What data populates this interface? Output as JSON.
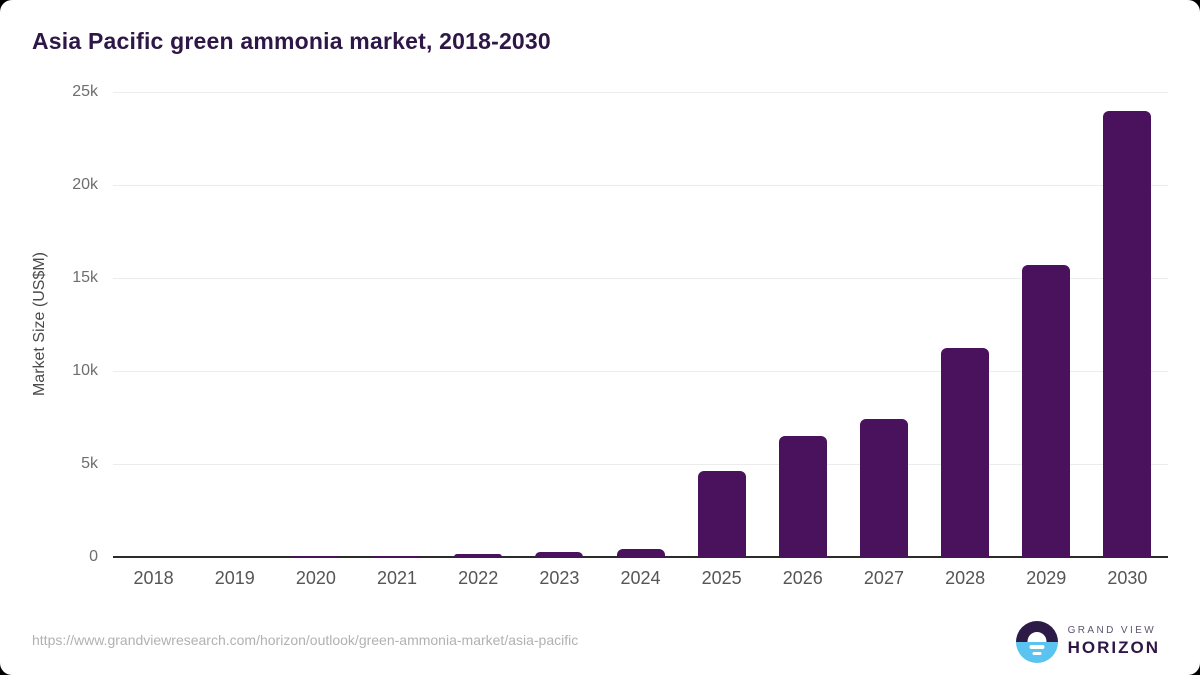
{
  "header": {
    "title": "Asia Pacific green ammonia market, 2018-2030"
  },
  "chart_data": {
    "type": "bar",
    "title": "Asia Pacific green ammonia market, 2018-2030",
    "categories": [
      "2018",
      "2019",
      "2020",
      "2021",
      "2022",
      "2023",
      "2024",
      "2025",
      "2026",
      "2027",
      "2028",
      "2029",
      "2030"
    ],
    "values": [
      10,
      20,
      30,
      50,
      140,
      260,
      440,
      4600,
      6500,
      7400,
      11250,
      15700,
      24000
    ],
    "xlabel": "",
    "ylabel": "Market Size (US$M)",
    "ylim": [
      0,
      25000
    ],
    "y_ticks": [
      {
        "value": 0,
        "label": "0"
      },
      {
        "value": 5000,
        "label": "5k"
      },
      {
        "value": 10000,
        "label": "10k"
      },
      {
        "value": 15000,
        "label": "15k"
      },
      {
        "value": 20000,
        "label": "20k"
      },
      {
        "value": 25000,
        "label": "25k"
      }
    ],
    "grid": true,
    "legend": false,
    "bar_color": "#4a115c"
  },
  "footer": {
    "source_url": "https://www.grandviewresearch.com/horizon/outlook/green-ammonia-market/asia-pacific",
    "logo": {
      "line1": "GRAND VIEW",
      "line2": "HORIZON"
    }
  },
  "colors": {
    "title": "#2e1747",
    "bar": "#4a115c",
    "gridline": "#ececec",
    "axis_line": "#2b2b2b",
    "tick_label": "#6e6e6e",
    "x_label": "#555555",
    "source": "#b1b1b1",
    "logo_dark": "#2e1a47",
    "logo_blue": "#5ac3f0"
  }
}
